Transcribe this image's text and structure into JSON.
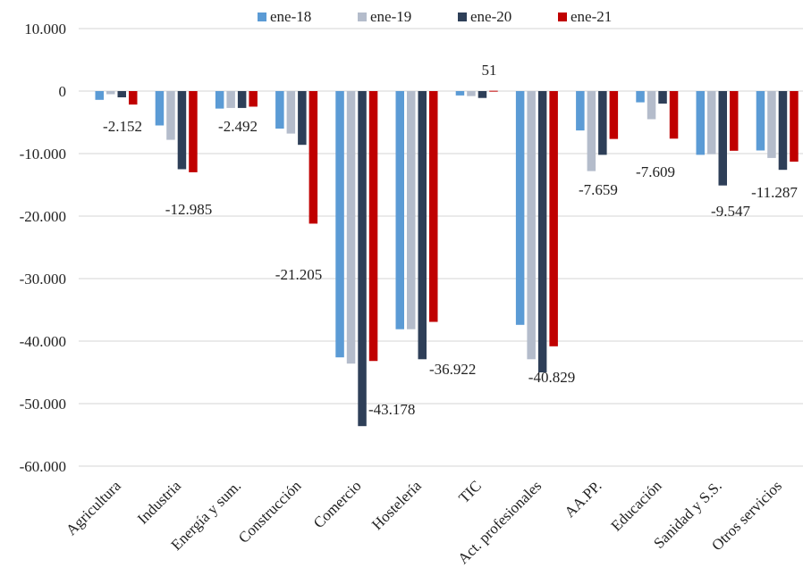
{
  "chart_data": {
    "type": "bar",
    "categories": [
      "Agricultura",
      "Industria",
      "Energía y sum.",
      "Construcción",
      "Comercio",
      "Hostelería",
      "TIC",
      "Act. profesionales",
      "AA.PP.",
      "Educación",
      "Sanidad y S.S.",
      "Otros servicios"
    ],
    "series": [
      {
        "name": "ene-18",
        "color": "#5b9bd5",
        "values": [
          -1400,
          -5500,
          -2800,
          -6000,
          -42600,
          -38100,
          -700,
          -37400,
          -6300,
          -1800,
          -10200,
          -9500
        ]
      },
      {
        "name": "ene-19",
        "color": "#b4bccb",
        "values": [
          -500,
          -7800,
          -2700,
          -6800,
          -43600,
          -38100,
          -800,
          -42900,
          -12800,
          -4500,
          -10100,
          -10700
        ]
      },
      {
        "name": "ene-20",
        "color": "#2e3f58",
        "values": [
          -1000,
          -12500,
          -2700,
          -8600,
          -53600,
          -42900,
          -1100,
          -45000,
          -10200,
          -2000,
          -15100,
          -12600
        ]
      },
      {
        "name": "ene-21",
        "color": "#c00000",
        "values": [
          -2152,
          -12985,
          -2492,
          -21205,
          -43178,
          -36922,
          51,
          -40829,
          -7659,
          -7609,
          -9547,
          -11287
        ]
      }
    ],
    "data_labels": [
      "-2.152",
      "-12.985",
      "-2.492",
      "-21.205",
      "-43.178",
      "-36.922",
      "51",
      "-40.829",
      "-7.659",
      "-7.609",
      "-9.547",
      "-11.287"
    ],
    "yticks": [
      "10.000",
      "0",
      "-10.000",
      "-20.000",
      "-30.000",
      "-40.000",
      "-50.000",
      "-60.000"
    ],
    "ytick_values": [
      10000,
      0,
      -10000,
      -20000,
      -30000,
      -40000,
      -50000,
      -60000
    ],
    "ylim": [
      -60000,
      10000
    ],
    "grid": true,
    "legend_position": "top"
  }
}
